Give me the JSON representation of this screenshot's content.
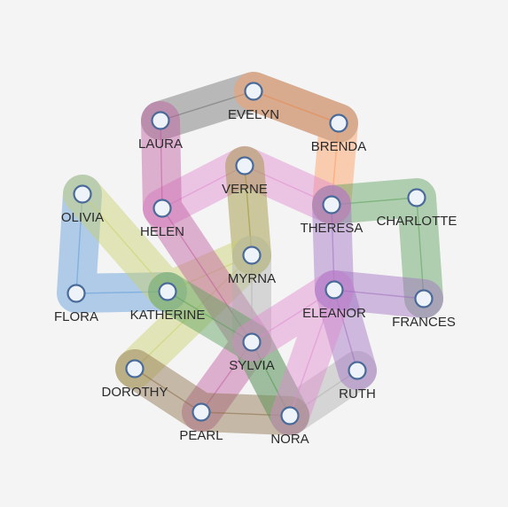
{
  "colors": {
    "background": "#f4f4f4",
    "node_fill": "#eef3fa",
    "node_stroke": "#4a6a99",
    "label": "#2a2a2a"
  },
  "nodes": [
    {
      "id": "EVELYN"
    },
    {
      "id": "LAURA"
    },
    {
      "id": "BRENDA"
    },
    {
      "id": "VERNE"
    },
    {
      "id": "OLIVIA"
    },
    {
      "id": "HELEN"
    },
    {
      "id": "THERESA"
    },
    {
      "id": "CHARLOTTE"
    },
    {
      "id": "MYRNA"
    },
    {
      "id": "FLORA"
    },
    {
      "id": "KATHERINE"
    },
    {
      "id": "ELEANOR"
    },
    {
      "id": "FRANCES"
    },
    {
      "id": "SYLVIA"
    },
    {
      "id": "DOROTHY"
    },
    {
      "id": "RUTH"
    },
    {
      "id": "PEARL"
    },
    {
      "id": "NORA"
    }
  ],
  "groups": [
    {
      "color": "#6e6e6e",
      "members": [
        "LAURA",
        "EVELYN",
        "BRENDA"
      ]
    },
    {
      "color": "#ff9a5a",
      "members": [
        "EVELYN",
        "BRENDA",
        "THERESA"
      ]
    },
    {
      "color": "#5aa05a",
      "members": [
        "THERESA",
        "CHARLOTTE",
        "FRANCES"
      ]
    },
    {
      "color": "#e08ad0",
      "members": [
        "HELEN",
        "VERNE",
        "THERESA"
      ]
    },
    {
      "color": "#9a8f2f",
      "members": [
        "VERNE",
        "MYRNA"
      ]
    },
    {
      "color": "#5e9ad8",
      "members": [
        "OLIVIA",
        "FLORA",
        "KATHERINE"
      ]
    },
    {
      "color": "#c9d06a",
      "members": [
        "OLIVIA",
        "KATHERINE",
        "MYRNA",
        "DOROTHY"
      ]
    },
    {
      "color": "#c25aa0",
      "members": [
        "LAURA",
        "HELEN",
        "SYLVIA",
        "PEARL"
      ]
    },
    {
      "color": "#b0b0b0",
      "members": [
        "MYRNA",
        "SYLVIA",
        "NORA",
        "RUTH"
      ]
    },
    {
      "color": "#a06ec0",
      "members": [
        "THERESA",
        "ELEANOR",
        "RUTH"
      ]
    },
    {
      "color": "#8c6e4a",
      "members": [
        "DOROTHY",
        "PEARL",
        "NORA"
      ]
    },
    {
      "color": "#5aa05a",
      "members": [
        "KATHERINE",
        "SYLVIA",
        "NORA"
      ]
    },
    {
      "color": "#e08ad0",
      "members": [
        "SYLVIA",
        "ELEANOR",
        "NORA"
      ]
    },
    {
      "color": "#a06ec0",
      "members": [
        "ELEANOR",
        "FRANCES"
      ]
    }
  ]
}
